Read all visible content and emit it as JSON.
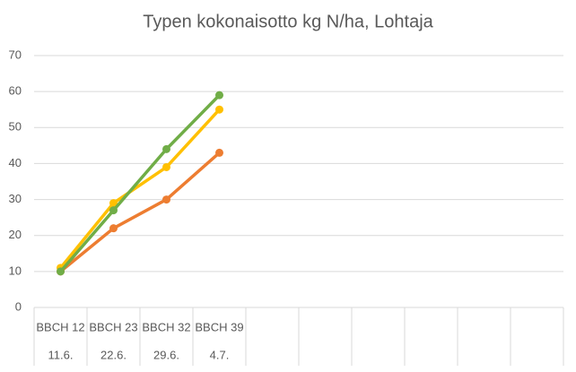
{
  "chart_data": {
    "type": "line",
    "title": "Typen kokonaisotto kg N/ha, Lohtaja",
    "categories": [
      "BBCH 12",
      "BBCH 23",
      "BBCH 32",
      "BBCH 39",
      null,
      null,
      null,
      null,
      null,
      null
    ],
    "categories2": [
      "11.6.",
      "22.6.",
      "29.6.",
      "4.7.",
      null,
      null,
      null,
      null,
      null,
      null
    ],
    "series": [
      {
        "color": "#ED7D31",
        "values": [
          10,
          22,
          30,
          43,
          null,
          null,
          null,
          null,
          null,
          null
        ]
      },
      {
        "color": "#FFC000",
        "values": [
          11,
          29,
          39,
          55,
          null,
          null,
          null,
          null,
          null,
          null
        ]
      },
      {
        "color": "#70AD47",
        "values": [
          10,
          27,
          44,
          59,
          null,
          null,
          null,
          null,
          null,
          null
        ]
      }
    ],
    "ylim": [
      0,
      70
    ],
    "yticks": [
      0,
      10,
      20,
      30,
      40,
      50,
      60,
      70
    ],
    "grid": true
  }
}
